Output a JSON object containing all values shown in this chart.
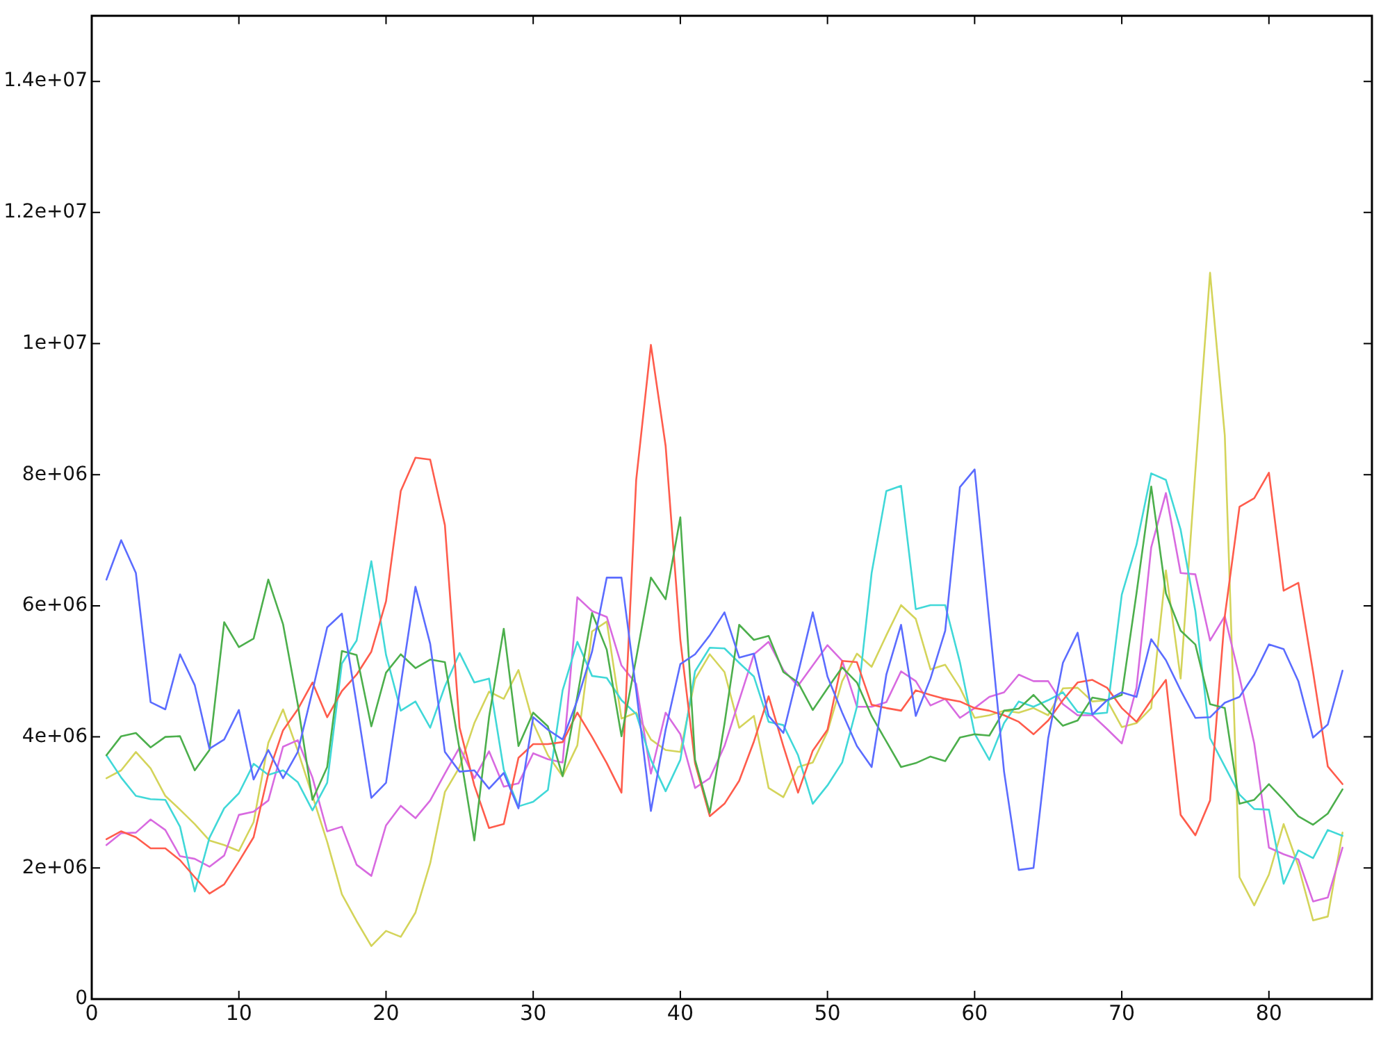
{
  "chart_data": {
    "type": "line",
    "x": [
      1,
      2,
      3,
      4,
      5,
      6,
      7,
      8,
      9,
      10,
      11,
      12,
      13,
      14,
      15,
      16,
      17,
      18,
      19,
      20,
      21,
      22,
      23,
      24,
      25,
      26,
      27,
      28,
      29,
      30,
      31,
      32,
      33,
      34,
      35,
      36,
      37,
      38,
      39,
      40,
      41,
      42,
      43,
      44,
      45,
      46,
      47,
      48,
      49,
      50,
      51,
      52,
      53,
      54,
      55,
      56,
      57,
      58,
      59,
      60,
      61,
      62,
      63,
      64,
      65,
      66,
      67,
      68,
      69,
      70,
      71,
      72,
      73,
      74,
      75,
      76,
      77,
      78,
      79,
      80,
      81,
      82,
      83,
      84,
      85
    ],
    "xlim": [
      0,
      87
    ],
    "xticks": [
      0,
      10,
      20,
      30,
      40,
      50,
      60,
      70,
      80
    ],
    "ylim": [
      0,
      15000000
    ],
    "yticks": [
      0,
      {
        "value": 2000000,
        "label": "2e+06"
      },
      {
        "value": 4000000,
        "label": "4e+06"
      },
      {
        "value": 6000000,
        "label": "6e+06"
      },
      {
        "value": 8000000,
        "label": "8e+06"
      },
      {
        "value": 10000000,
        "label": "1e+07"
      },
      {
        "value": 12000000,
        "label": "1.2e+07"
      },
      {
        "value": 14000000,
        "label": "1.4e+07"
      }
    ],
    "marker": "none",
    "line_style": "solid",
    "series": [
      {
        "color": "#5b6cff",
        "values": [
          6400000.0,
          7000000.0,
          6500000.0,
          4530000.0,
          4420000.0,
          5260000.0,
          4790000.0,
          3820000.0,
          3960000.0,
          4410000.0,
          3350000.0,
          3800000.0,
          3370000.0,
          3770000.0,
          4700000.0,
          5670000.0,
          5880000.0,
          4500000.0,
          3070000.0,
          3300000.0,
          4800000.0,
          6290000.0,
          5420000.0,
          3770000.0,
          3470000.0,
          3490000.0,
          3210000.0,
          3450000.0,
          2910000.0,
          4300000.0,
          4110000.0,
          3960000.0,
          4560000.0,
          5300000.0,
          6430000.0,
          6430000.0,
          4710000.0,
          2870000.0,
          4110000.0,
          5110000.0,
          5260000.0,
          5550000.0,
          5900000.0,
          5210000.0,
          5270000.0,
          4320000.0,
          4060000.0,
          4970000.0,
          5900000.0,
          4920000.0,
          4370000.0,
          3860000.0,
          3540000.0,
          4950000.0,
          5710000.0,
          4320000.0,
          4890000.0,
          5620000.0,
          7810000.0,
          8080000.0,
          5760000.0,
          3470000.0,
          1970000.0,
          2000000.0,
          3980000.0,
          5130000.0,
          5590000.0,
          4340000.0,
          4560000.0,
          4680000.0,
          4610000.0,
          5490000.0,
          5170000.0,
          4710000.0,
          4290000.0,
          4300000.0,
          4520000.0,
          4610000.0,
          4950000.0,
          5410000.0,
          5340000.0,
          4850000.0,
          3990000.0,
          4190000.0,
          5010000.0
        ]
      },
      {
        "color": "#4caf4c",
        "values": [
          3720000.0,
          4010000.0,
          4060000.0,
          3840000.0,
          4000000.0,
          4010000.0,
          3490000.0,
          3800000.0,
          5750000.0,
          5370000.0,
          5500000.0,
          6400000.0,
          5720000.0,
          4500000.0,
          3040000.0,
          3540000.0,
          5310000.0,
          5250000.0,
          4160000.0,
          4980000.0,
          5260000.0,
          5050000.0,
          5180000.0,
          5140000.0,
          3800000.0,
          2420000.0,
          4300000.0,
          5650000.0,
          3860000.0,
          4370000.0,
          4160000.0,
          3400000.0,
          4620000.0,
          5890000.0,
          5330000.0,
          4010000.0,
          5200000.0,
          6430000.0,
          6100000.0,
          7350000.0,
          3650000.0,
          2840000.0,
          4200000.0,
          5710000.0,
          5480000.0,
          5540000.0,
          4990000.0,
          4830000.0,
          4410000.0,
          4740000.0,
          5060000.0,
          4830000.0,
          4320000.0,
          3930000.0,
          3540000.0,
          3600000.0,
          3700000.0,
          3630000.0,
          3990000.0,
          4040000.0,
          4020000.0,
          4400000.0,
          4430000.0,
          4640000.0,
          4400000.0,
          4170000.0,
          4250000.0,
          4600000.0,
          4560000.0,
          4640000.0,
          6190000.0,
          7820000.0,
          6190000.0,
          5620000.0,
          5410000.0,
          4500000.0,
          4440000.0,
          2980000.0,
          3040000.0,
          3280000.0,
          3040000.0,
          2790000.0,
          2660000.0,
          2830000.0,
          3200000.0
        ]
      },
      {
        "color": "#ff5c4c",
        "values": [
          2440000.0,
          2560000.0,
          2470000.0,
          2300000.0,
          2300000.0,
          2120000.0,
          1860000.0,
          1610000.0,
          1750000.0,
          2100000.0,
          2470000.0,
          3440000.0,
          4100000.0,
          4420000.0,
          4830000.0,
          4300000.0,
          4700000.0,
          4950000.0,
          5300000.0,
          6070000.0,
          7750000.0,
          8260000.0,
          8230000.0,
          7230000.0,
          4140000.0,
          3260000.0,
          2610000.0,
          2670000.0,
          3680000.0,
          3890000.0,
          3890000.0,
          3920000.0,
          4370000.0,
          4000000.0,
          3600000.0,
          3150000.0,
          7920000.0,
          9980000.0,
          8440000.0,
          5480000.0,
          3600000.0,
          2790000.0,
          2980000.0,
          3330000.0,
          3930000.0,
          4620000.0,
          3860000.0,
          3150000.0,
          3790000.0,
          4110000.0,
          5160000.0,
          5140000.0,
          4490000.0,
          4440000.0,
          4400000.0,
          4710000.0,
          4640000.0,
          4580000.0,
          4540000.0,
          4440000.0,
          4400000.0,
          4330000.0,
          4230000.0,
          4040000.0,
          4250000.0,
          4560000.0,
          4830000.0,
          4870000.0,
          4750000.0,
          4440000.0,
          4230000.0,
          4560000.0,
          4870000.0,
          2810000.0,
          2500000.0,
          3030000.0,
          5840000.0,
          7510000.0,
          7640000.0,
          8030000.0,
          6230000.0,
          6350000.0,
          4990000.0,
          3550000.0,
          3280000.0
        ]
      },
      {
        "color": "#40d8d8",
        "values": [
          3720000.0,
          3380000.0,
          3100000.0,
          3050000.0,
          3040000.0,
          2630000.0,
          1640000.0,
          2460000.0,
          2910000.0,
          3140000.0,
          3590000.0,
          3420000.0,
          3490000.0,
          3310000.0,
          2880000.0,
          3300000.0,
          5120000.0,
          5470000.0,
          6680000.0,
          5250000.0,
          4400000.0,
          4540000.0,
          4140000.0,
          4770000.0,
          5280000.0,
          4830000.0,
          4890000.0,
          3500000.0,
          2940000.0,
          3010000.0,
          3190000.0,
          4710000.0,
          5450000.0,
          4930000.0,
          4900000.0,
          4560000.0,
          4350000.0,
          3650000.0,
          3170000.0,
          3650000.0,
          5000000.0,
          5360000.0,
          5350000.0,
          5130000.0,
          4920000.0,
          4230000.0,
          4180000.0,
          3720000.0,
          2980000.0,
          3260000.0,
          3610000.0,
          4460000.0,
          6500000.0,
          7750000.0,
          7830000.0,
          5950000.0,
          6010000.0,
          6010000.0,
          5140000.0,
          4050000.0,
          3650000.0,
          4210000.0,
          4540000.0,
          4460000.0,
          4560000.0,
          4680000.0,
          4380000.0,
          4350000.0,
          4370000.0,
          6170000.0,
          6930000.0,
          8020000.0,
          7920000.0,
          7160000.0,
          5920000.0,
          3980000.0,
          3550000.0,
          3120000.0,
          2900000.0,
          2890000.0,
          1760000.0,
          2270000.0,
          2150000.0,
          2580000.0,
          2490000.0
        ]
      },
      {
        "color": "#d86ae0",
        "values": [
          2350000.0,
          2530000.0,
          2540000.0,
          2740000.0,
          2580000.0,
          2180000.0,
          2140000.0,
          2020000.0,
          2190000.0,
          2810000.0,
          2860000.0,
          3030000.0,
          3850000.0,
          3950000.0,
          3380000.0,
          2560000.0,
          2630000.0,
          2050000.0,
          1880000.0,
          2650000.0,
          2950000.0,
          2760000.0,
          3030000.0,
          3440000.0,
          3840000.0,
          3370000.0,
          3780000.0,
          3240000.0,
          3290000.0,
          3750000.0,
          3660000.0,
          3610000.0,
          6130000.0,
          5920000.0,
          5830000.0,
          5090000.0,
          4810000.0,
          3440000.0,
          4370000.0,
          4040000.0,
          3220000.0,
          3370000.0,
          3860000.0,
          4560000.0,
          5260000.0,
          5450000.0,
          5020000.0,
          4780000.0,
          5090000.0,
          5400000.0,
          5160000.0,
          4460000.0,
          4460000.0,
          4530000.0,
          5000000.0,
          4850000.0,
          4480000.0,
          4580000.0,
          4290000.0,
          4440000.0,
          4610000.0,
          4680000.0,
          4950000.0,
          4850000.0,
          4850000.0,
          4500000.0,
          4330000.0,
          4330000.0,
          4120000.0,
          3900000.0,
          4750000.0,
          6890000.0,
          7720000.0,
          6500000.0,
          6480000.0,
          5470000.0,
          5840000.0,
          4910000.0,
          3900000.0,
          2310000.0,
          2210000.0,
          2130000.0,
          1490000.0,
          1550000.0,
          2310000.0
        ]
      },
      {
        "color": "#d4d45a",
        "values": [
          3370000.0,
          3490000.0,
          3770000.0,
          3520000.0,
          3100000.0,
          2890000.0,
          2670000.0,
          2420000.0,
          2350000.0,
          2260000.0,
          2700000.0,
          3910000.0,
          4420000.0,
          3790000.0,
          3100000.0,
          2400000.0,
          1600000.0,
          1190000.0,
          810000.0,
          1040000.0,
          950000.0,
          1320000.0,
          2070000.0,
          3160000.0,
          3540000.0,
          4210000.0,
          4690000.0,
          4580000.0,
          5020000.0,
          4210000.0,
          3720000.0,
          3400000.0,
          3870000.0,
          5610000.0,
          5760000.0,
          4280000.0,
          4370000.0,
          3960000.0,
          3800000.0,
          3770000.0,
          4880000.0,
          5260000.0,
          4990000.0,
          4140000.0,
          4320000.0,
          3220000.0,
          3080000.0,
          3540000.0,
          3610000.0,
          4080000.0,
          4850000.0,
          5270000.0,
          5070000.0,
          5550000.0,
          6010000.0,
          5800000.0,
          5030000.0,
          5100000.0,
          4750000.0,
          4290000.0,
          4330000.0,
          4400000.0,
          4370000.0,
          4440000.0,
          4330000.0,
          4740000.0,
          4750000.0,
          4540000.0,
          4560000.0,
          4150000.0,
          4210000.0,
          4440000.0,
          6540000.0,
          4890000.0,
          8050000.0,
          11080000.0,
          8600000.0,
          1860000.0,
          1430000.0,
          1900000.0,
          2670000.0,
          2030000.0,
          1200000.0,
          1260000.0,
          2540000.0
        ]
      }
    ]
  }
}
